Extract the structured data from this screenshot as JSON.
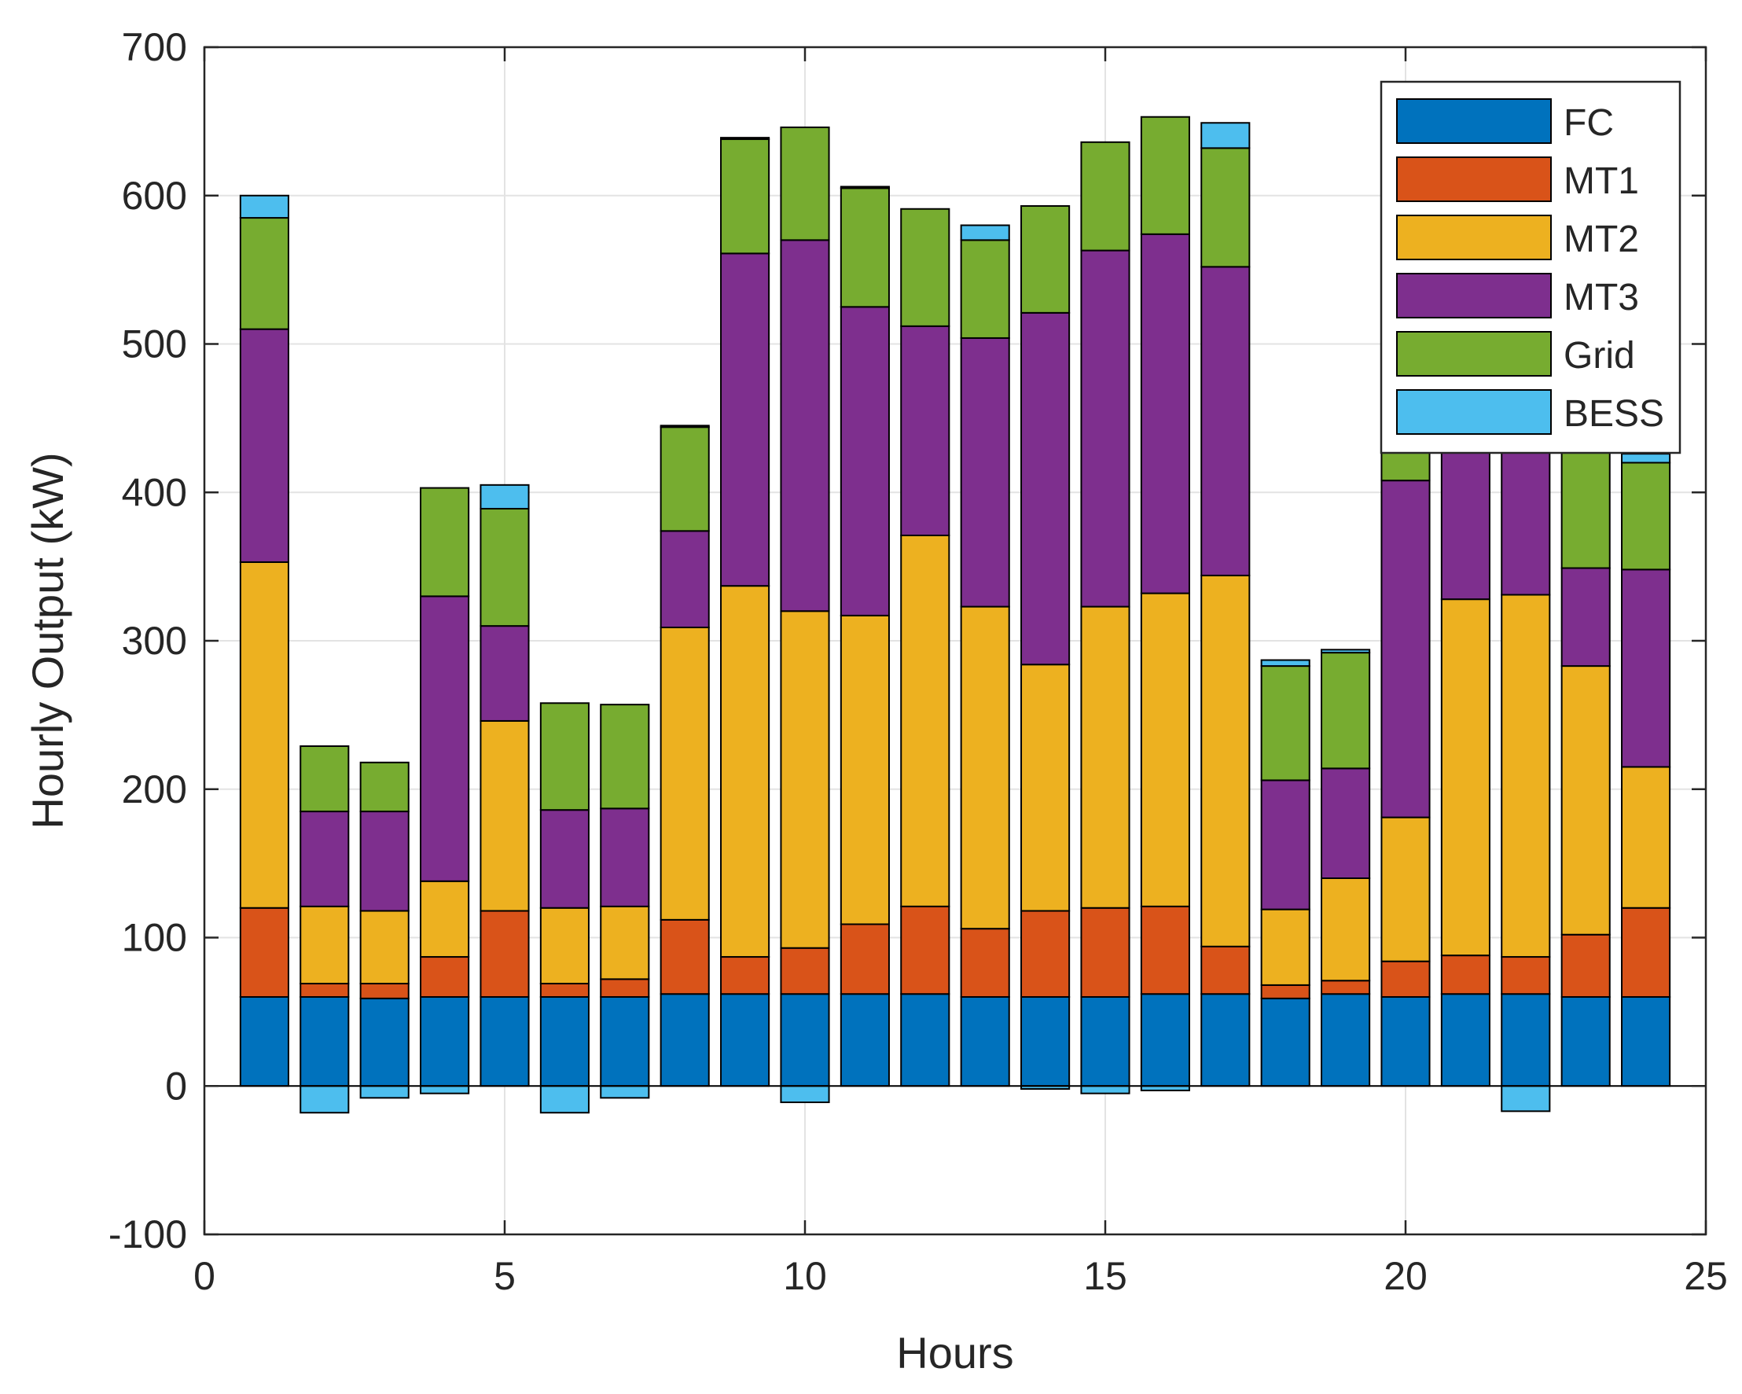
{
  "chart_data": {
    "type": "bar",
    "stacked": true,
    "title": "",
    "xlabel": "Hours",
    "ylabel": "Hourly Output (kW)",
    "xlim": [
      0,
      25
    ],
    "ylim": [
      -100,
      700
    ],
    "xticks": [
      0,
      5,
      10,
      15,
      20,
      25
    ],
    "yticks": [
      -100,
      0,
      100,
      200,
      300,
      400,
      500,
      600,
      700
    ],
    "grid": true,
    "legend_position": "top-right",
    "x": [
      1,
      2,
      3,
      4,
      5,
      6,
      7,
      8,
      9,
      10,
      11,
      12,
      13,
      14,
      15,
      16,
      17,
      18,
      19,
      20,
      21,
      22,
      23,
      24
    ],
    "series": [
      {
        "name": "FC",
        "color": "#0072BD",
        "values": [
          60,
          60,
          59,
          60,
          60,
          60,
          60,
          62,
          62,
          62,
          62,
          62,
          60,
          60,
          60,
          62,
          62,
          59,
          62,
          60,
          62,
          62,
          60,
          60
        ]
      },
      {
        "name": "MT1",
        "color": "#D95319",
        "values": [
          60,
          9,
          10,
          27,
          58,
          9,
          12,
          50,
          25,
          31,
          47,
          59,
          46,
          58,
          60,
          59,
          32,
          9,
          9,
          24,
          26,
          25,
          42,
          60
        ]
      },
      {
        "name": "MT2",
        "color": "#EDB120",
        "values": [
          233,
          52,
          49,
          51,
          128,
          51,
          49,
          197,
          250,
          227,
          208,
          250,
          217,
          166,
          203,
          211,
          250,
          51,
          69,
          97,
          240,
          244,
          181,
          95
        ]
      },
      {
        "name": "MT3",
        "color": "#7E2F8E",
        "values": [
          157,
          64,
          67,
          192,
          64,
          66,
          66,
          65,
          224,
          250,
          208,
          141,
          181,
          237,
          240,
          242,
          208,
          87,
          74,
          227,
          235,
          249,
          66,
          133
        ]
      },
      {
        "name": "Grid",
        "color": "#77AC30",
        "values": [
          75,
          44,
          33,
          73,
          79,
          72,
          70,
          70,
          77,
          76,
          80,
          79,
          66,
          72,
          73,
          79,
          80,
          77,
          78,
          75,
          42,
          42,
          78,
          72
        ]
      },
      {
        "name": "BESS",
        "color": "#4DBEEE",
        "values": [
          15,
          -18,
          -8,
          -5,
          16,
          -18,
          -8,
          1,
          1,
          -11,
          1,
          0,
          10,
          -2,
          -5,
          -3,
          17,
          4,
          2,
          0,
          0,
          -17,
          1,
          6
        ]
      }
    ]
  }
}
